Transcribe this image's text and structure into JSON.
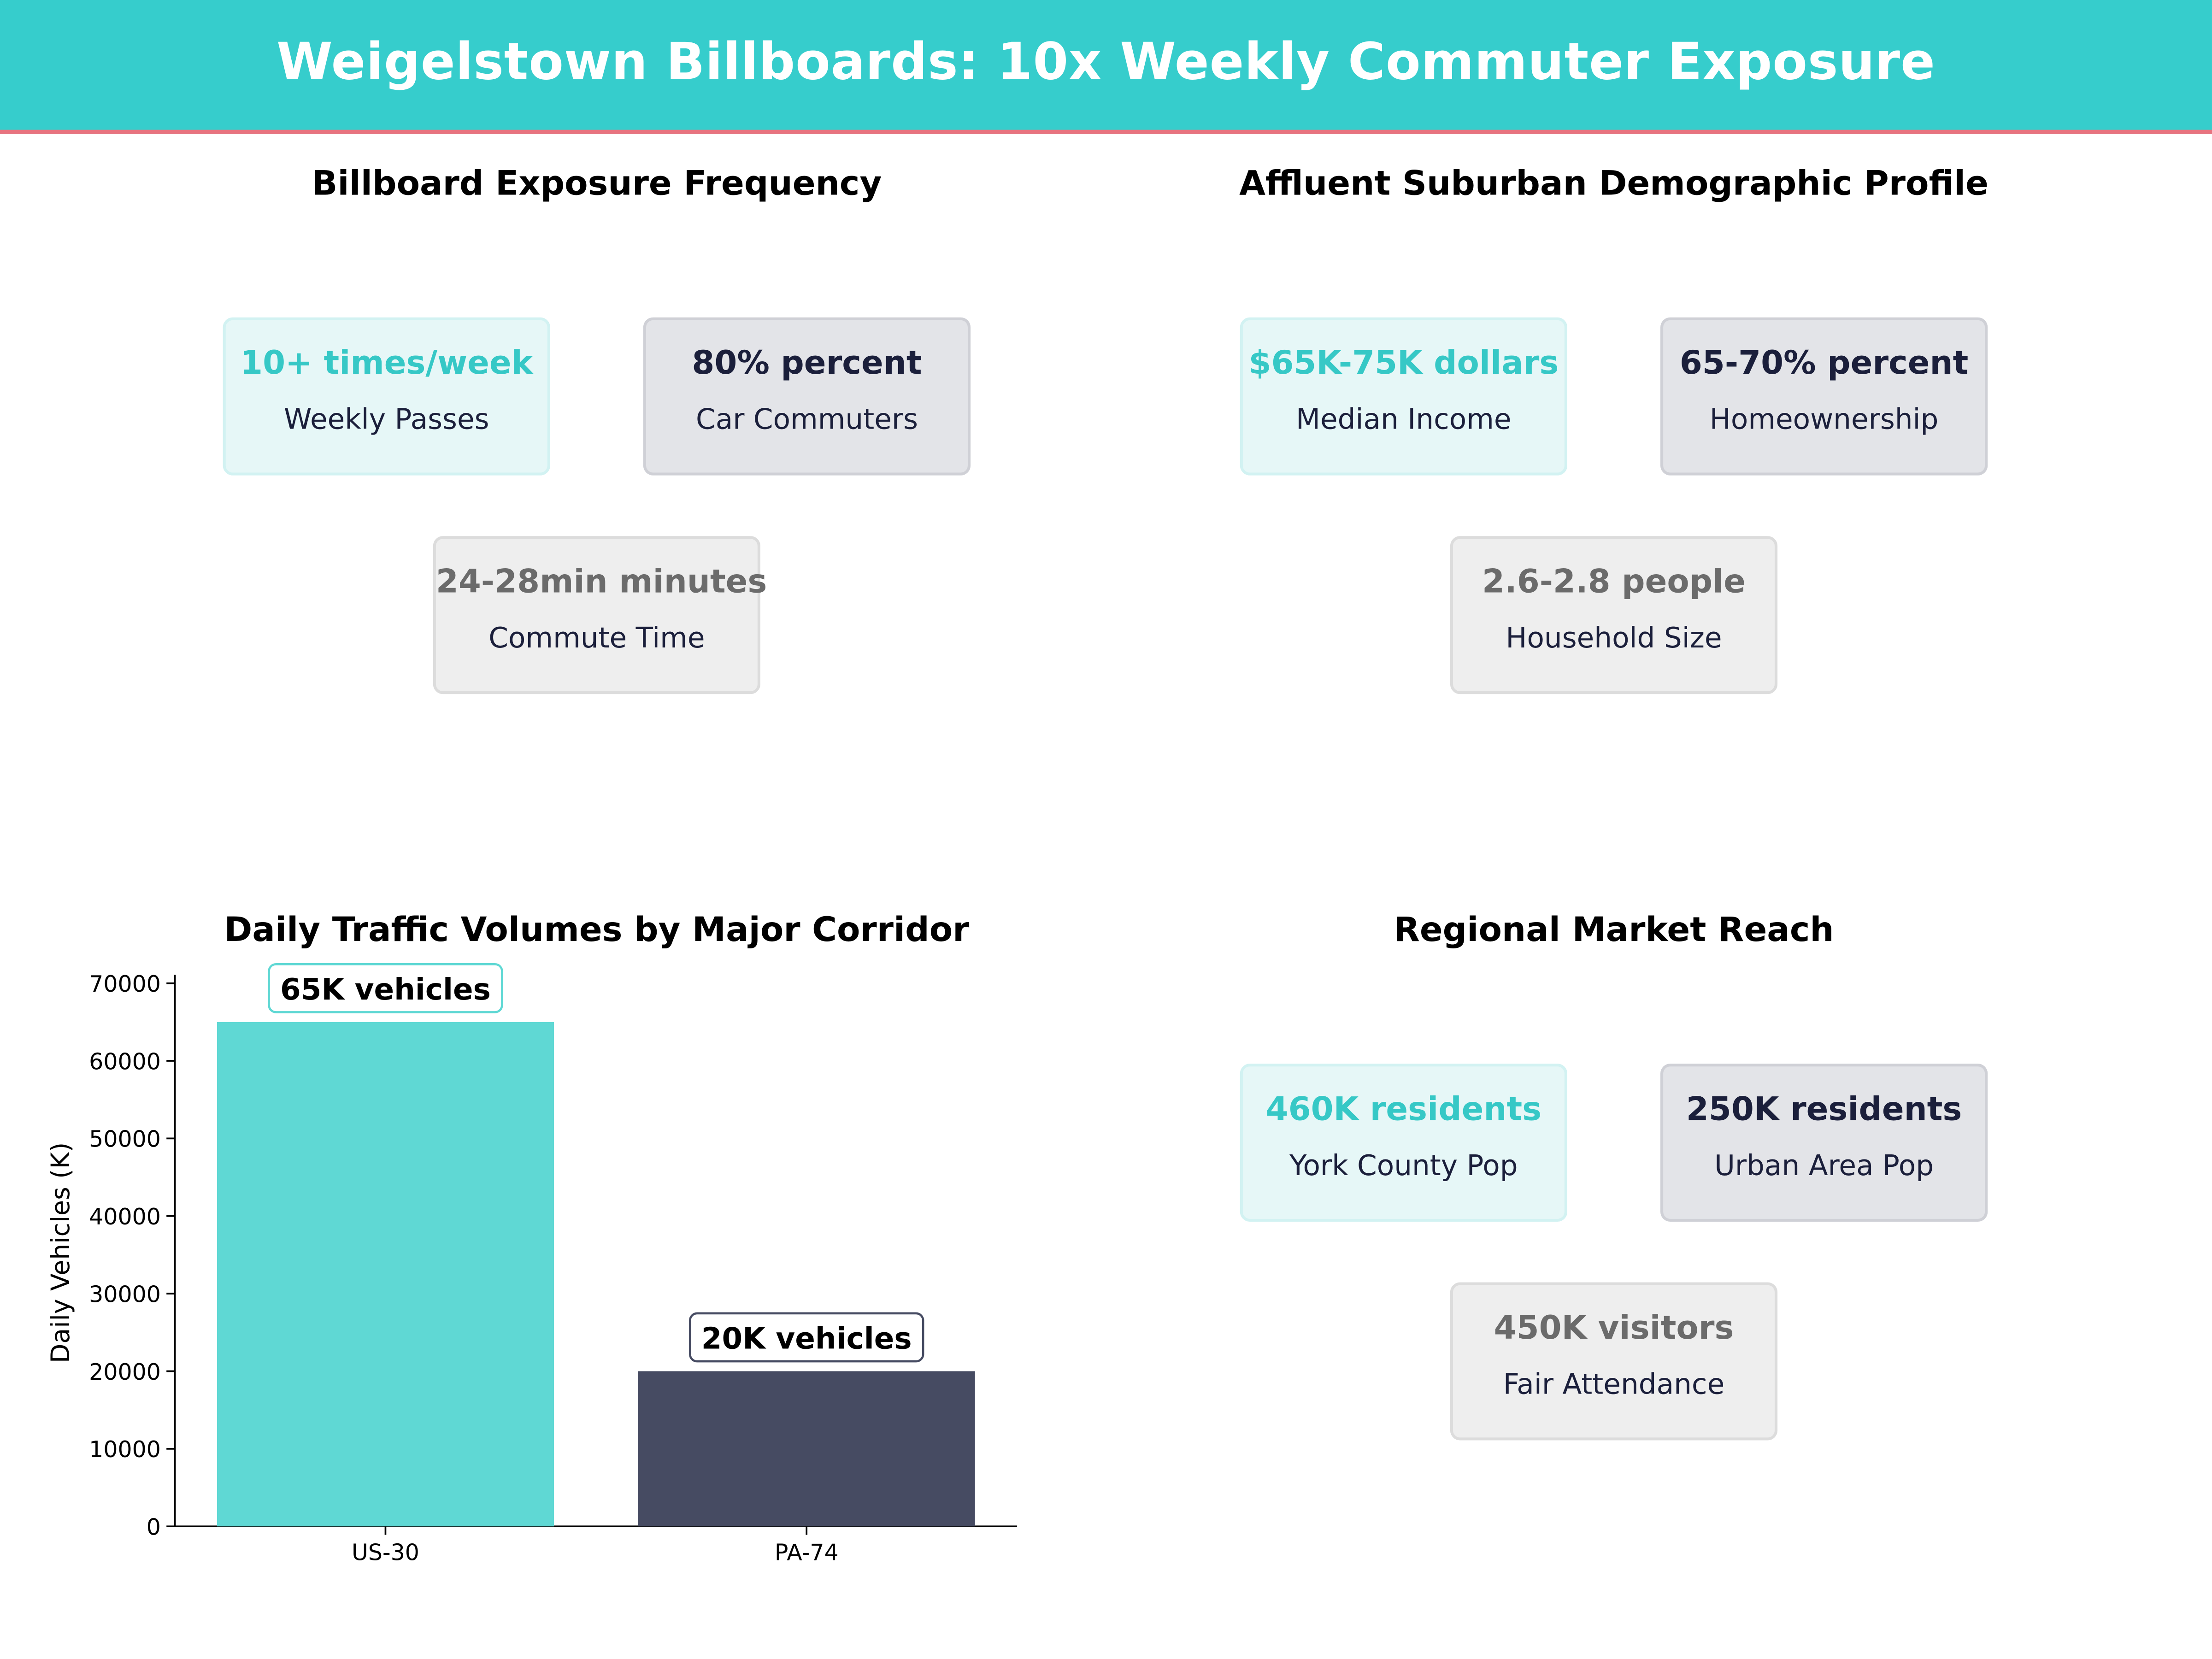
{
  "header": {
    "title": "Weigelstown Billboards: 10x Weekly Commuter Exposure"
  },
  "colors": {
    "teal": "#36cdcc",
    "navy": "#1b1f3b",
    "gray": "#6b6b6b",
    "accent_line": "#e8737f",
    "bar_teal": "#5fd8d4",
    "bar_navy": "#464b62"
  },
  "panels": {
    "exposure": {
      "title": "Billboard Exposure Frequency",
      "cards": [
        {
          "value": "10+ times/week",
          "label": "Weekly Passes"
        },
        {
          "value": "80% percent",
          "label": "Car Commuters"
        },
        {
          "value": "24-28min minutes",
          "label": "Commute Time"
        }
      ]
    },
    "demographics": {
      "title": "Affluent Suburban Demographic Profile",
      "cards": [
        {
          "value": "$65K-75K dollars",
          "label": "Median Income"
        },
        {
          "value": "65-70% percent",
          "label": "Homeownership"
        },
        {
          "value": "2.6-2.8 people",
          "label": "Household Size"
        }
      ]
    },
    "reach": {
      "title": "Regional Market Reach",
      "cards": [
        {
          "value": "460K residents",
          "label": "York County Pop"
        },
        {
          "value": "250K residents",
          "label": "Urban Area Pop"
        },
        {
          "value": "450K visitors",
          "label": "Fair Attendance"
        }
      ]
    }
  },
  "chart_data": {
    "type": "bar",
    "title": "Daily Traffic Volumes by Major Corridor",
    "categories": [
      "US-30",
      "PA-74"
    ],
    "values": [
      65000,
      20000
    ],
    "data_labels": [
      "65K vehicles",
      "20K vehicles"
    ],
    "colors": [
      "#5fd8d4",
      "#464b62"
    ],
    "xlabel": "",
    "ylabel": "Daily Vehicles (K)",
    "ylim": [
      0,
      70000
    ],
    "yticks": [
      0,
      10000,
      20000,
      30000,
      40000,
      50000,
      60000,
      70000
    ],
    "grid": false
  }
}
